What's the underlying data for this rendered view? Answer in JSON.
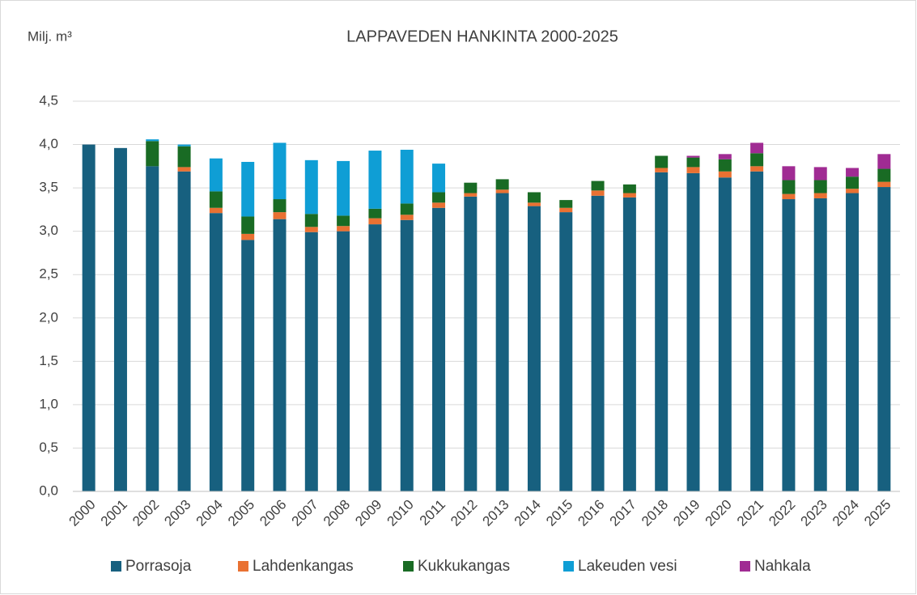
{
  "chart_data": {
    "type": "stacked_bar",
    "title": "LAPPAVEDEN HANKINTA 2000-2025",
    "ylabel": "Milj. m³",
    "categories": [
      "2000",
      "2001",
      "2002",
      "2003",
      "2004",
      "2005",
      "2006",
      "2007",
      "2008",
      "2009",
      "2010",
      "2011",
      "2012",
      "2013",
      "2014",
      "2015",
      "2016",
      "2017",
      "2018",
      "2019",
      "2020",
      "2021",
      "2022",
      "2023",
      "2024",
      "2025"
    ],
    "series": [
      {
        "name": "Porrasoja",
        "color": "#17607f",
        "values": [
          4.0,
          3.96,
          3.75,
          3.69,
          3.21,
          2.9,
          3.14,
          2.99,
          3.0,
          3.08,
          3.13,
          3.27,
          3.4,
          3.44,
          3.29,
          3.22,
          3.41,
          3.39,
          3.68,
          3.67,
          3.62,
          3.69,
          3.37,
          3.38,
          3.44,
          3.51
        ]
      },
      {
        "name": "Lahdenkangas",
        "color": "#e97132",
        "values": [
          0,
          0,
          0,
          0.05,
          0.06,
          0.07,
          0.08,
          0.06,
          0.06,
          0.07,
          0.06,
          0.06,
          0.04,
          0.04,
          0.04,
          0.05,
          0.06,
          0.05,
          0.05,
          0.07,
          0.07,
          0.06,
          0.06,
          0.06,
          0.05,
          0.06
        ]
      },
      {
        "name": "Kukkukangas",
        "color": "#196b24",
        "values": [
          0,
          0,
          0.29,
          0.24,
          0.19,
          0.2,
          0.15,
          0.15,
          0.12,
          0.11,
          0.13,
          0.12,
          0.12,
          0.12,
          0.12,
          0.09,
          0.11,
          0.1,
          0.14,
          0.11,
          0.14,
          0.15,
          0.16,
          0.15,
          0.14,
          0.15
        ]
      },
      {
        "name": "Lakeuden vesi",
        "color": "#0f9ed5",
        "values": [
          0,
          0,
          0.02,
          0.02,
          0.38,
          0.63,
          0.65,
          0.62,
          0.63,
          0.67,
          0.62,
          0.33,
          0,
          0,
          0,
          0,
          0,
          0,
          0,
          0,
          0,
          0,
          0,
          0,
          0,
          0
        ]
      },
      {
        "name": "Nahkala",
        "color": "#a02b93",
        "values": [
          0,
          0,
          0,
          0,
          0,
          0,
          0,
          0,
          0,
          0,
          0,
          0,
          0,
          0,
          0,
          0,
          0,
          0,
          0,
          0.02,
          0.06,
          0.12,
          0.16,
          0.15,
          0.1,
          0.17
        ]
      }
    ],
    "ylim": [
      0,
      4.5
    ],
    "yticks": [
      {
        "value": 0,
        "label": "0,0"
      },
      {
        "value": 0.5,
        "label": "0,5"
      },
      {
        "value": 1,
        "label": "1,0"
      },
      {
        "value": 1.5,
        "label": "1,5"
      },
      {
        "value": 2,
        "label": "2,0"
      },
      {
        "value": 2.5,
        "label": "2,5"
      },
      {
        "value": 3,
        "label": "3,0"
      },
      {
        "value": 3.5,
        "label": "3,5"
      },
      {
        "value": 4,
        "label": "4,0"
      },
      {
        "value": 4.5,
        "label": "4,5"
      }
    ],
    "grid": true,
    "legend": "bottom"
  }
}
